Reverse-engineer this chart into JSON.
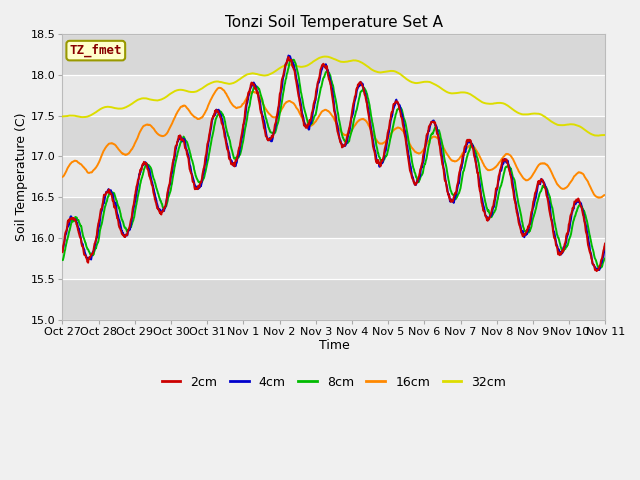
{
  "title": "Tonzi Soil Temperature Set A",
  "xlabel": "Time",
  "ylabel": "Soil Temperature (C)",
  "ylim": [
    15.0,
    18.5
  ],
  "yticks": [
    15.0,
    15.5,
    16.0,
    16.5,
    17.0,
    17.5,
    18.0,
    18.5
  ],
  "xtick_labels": [
    "Oct 27",
    "Oct 28",
    "Oct 29",
    "Oct 30",
    "Oct 31",
    "Nov 1",
    "Nov 2",
    "Nov 3",
    "Nov 4",
    "Nov 5",
    "Nov 6",
    "Nov 7",
    "Nov 8",
    "Nov 9",
    "Nov 10",
    "Nov 11"
  ],
  "colors": {
    "2cm": "#cc0000",
    "4cm": "#0000cc",
    "8cm": "#00bb00",
    "16cm": "#ff8800",
    "32cm": "#dddd00"
  },
  "legend_label": "TZ_fmet",
  "legend_box_facecolor": "#ffffcc",
  "legend_box_edgecolor": "#999900",
  "legend_text_color": "#880000",
  "fig_facecolor": "#f0f0f0",
  "plot_bg_color": "#e8e8e8",
  "band_dark": "#d8d8d8",
  "band_light": "#e8e8e8",
  "title_fontsize": 11,
  "axis_fontsize": 9,
  "tick_fontsize": 8,
  "linewidth": 1.4,
  "n_days": 15,
  "pts_per_day": 96
}
